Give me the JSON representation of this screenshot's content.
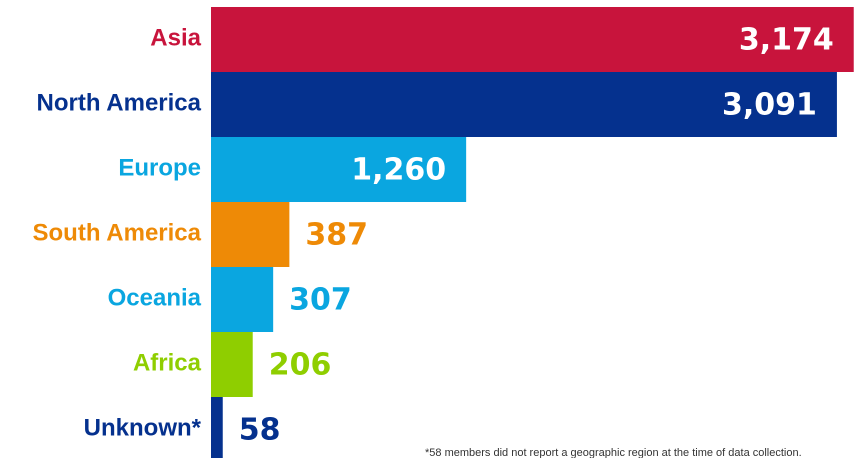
{
  "chart_data": {
    "type": "bar",
    "orientation": "horizontal",
    "categories": [
      "Asia",
      "North America",
      "Europe",
      "South America",
      "Oceania",
      "Africa",
      "Unknown*"
    ],
    "values": [
      3174,
      3091,
      1260,
      387,
      307,
      206,
      58
    ],
    "value_labels": [
      "3,174",
      "3,091",
      "1,260",
      "387",
      "307",
      "206",
      "58"
    ],
    "colors": [
      "#c8143c",
      "#05318e",
      "#0aa6e0",
      "#ee8a06",
      "#0aa6e0",
      "#8fce00",
      "#05318e"
    ],
    "grid": false,
    "legend": "none",
    "footnote": "*58 members did not report a geographic region at the time of data collection."
  }
}
